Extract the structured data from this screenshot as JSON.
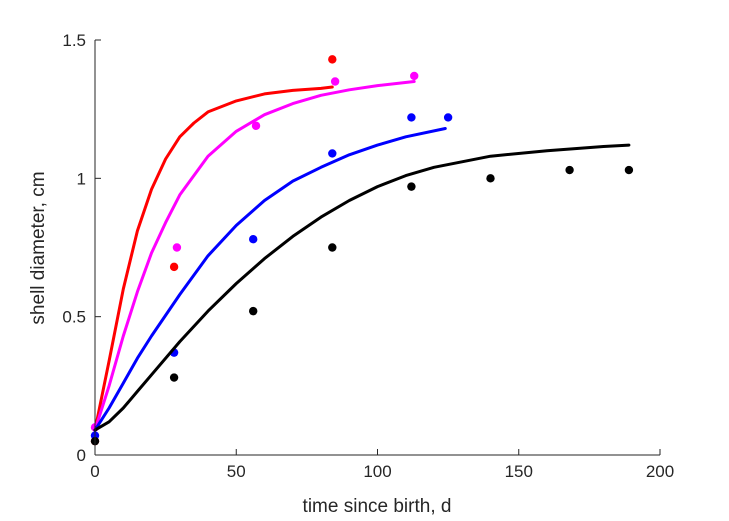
{
  "chart_data": {
    "type": "scatter",
    "title": "",
    "xlabel": "time since birth, d",
    "ylabel": "shell diameter, cm",
    "xlim": [
      0,
      200
    ],
    "ylim": [
      0,
      1.5
    ],
    "xticks": [
      "0",
      "50",
      "100",
      "150",
      "200"
    ],
    "yticks": [
      "0",
      "0.5",
      "1",
      "1.5"
    ],
    "grid": false,
    "legend": "none",
    "series": [
      {
        "color": "#ff0000",
        "points": [
          [
            0,
            0.05
          ],
          [
            28,
            0.68
          ],
          [
            84,
            1.43
          ]
        ],
        "fit": [
          [
            0,
            0.09
          ],
          [
            5,
            0.34
          ],
          [
            10,
            0.6
          ],
          [
            15,
            0.81
          ],
          [
            20,
            0.96
          ],
          [
            25,
            1.07
          ],
          [
            30,
            1.15
          ],
          [
            35,
            1.2
          ],
          [
            40,
            1.24
          ],
          [
            50,
            1.28
          ],
          [
            60,
            1.305
          ],
          [
            70,
            1.318
          ],
          [
            80,
            1.325
          ],
          [
            84,
            1.33
          ]
        ]
      },
      {
        "color": "#ff00ff",
        "points": [
          [
            0,
            0.1
          ],
          [
            29,
            0.75
          ],
          [
            57,
            1.19
          ],
          [
            85,
            1.35
          ],
          [
            113,
            1.37
          ]
        ],
        "fit": [
          [
            0,
            0.09
          ],
          [
            5,
            0.25
          ],
          [
            10,
            0.43
          ],
          [
            15,
            0.59
          ],
          [
            20,
            0.73
          ],
          [
            25,
            0.84
          ],
          [
            30,
            0.94
          ],
          [
            40,
            1.08
          ],
          [
            50,
            1.17
          ],
          [
            60,
            1.23
          ],
          [
            70,
            1.27
          ],
          [
            80,
            1.3
          ],
          [
            90,
            1.32
          ],
          [
            100,
            1.335
          ],
          [
            113,
            1.35
          ]
        ]
      },
      {
        "color": "#0000ff",
        "points": [
          [
            0,
            0.07
          ],
          [
            28,
            0.37
          ],
          [
            56,
            0.78
          ],
          [
            84,
            1.09
          ],
          [
            112,
            1.22
          ],
          [
            125,
            1.22
          ]
        ],
        "fit": [
          [
            0,
            0.09
          ],
          [
            5,
            0.17
          ],
          [
            10,
            0.26
          ],
          [
            15,
            0.35
          ],
          [
            20,
            0.43
          ],
          [
            30,
            0.58
          ],
          [
            40,
            0.72
          ],
          [
            50,
            0.83
          ],
          [
            60,
            0.92
          ],
          [
            70,
            0.99
          ],
          [
            80,
            1.04
          ],
          [
            90,
            1.085
          ],
          [
            100,
            1.12
          ],
          [
            110,
            1.15
          ],
          [
            124,
            1.18
          ]
        ]
      },
      {
        "color": "#000000",
        "points": [
          [
            0,
            0.05
          ],
          [
            28,
            0.28
          ],
          [
            56,
            0.52
          ],
          [
            84,
            0.75
          ],
          [
            112,
            0.97
          ],
          [
            140,
            1.0
          ],
          [
            168,
            1.03
          ],
          [
            189,
            1.03
          ]
        ],
        "fit": [
          [
            0,
            0.09
          ],
          [
            5,
            0.12
          ],
          [
            10,
            0.17
          ],
          [
            15,
            0.23
          ],
          [
            20,
            0.29
          ],
          [
            30,
            0.41
          ],
          [
            40,
            0.52
          ],
          [
            50,
            0.62
          ],
          [
            60,
            0.71
          ],
          [
            70,
            0.79
          ],
          [
            80,
            0.86
          ],
          [
            90,
            0.92
          ],
          [
            100,
            0.97
          ],
          [
            110,
            1.01
          ],
          [
            120,
            1.04
          ],
          [
            140,
            1.08
          ],
          [
            160,
            1.1
          ],
          [
            180,
            1.115
          ],
          [
            189,
            1.12
          ]
        ]
      }
    ]
  }
}
